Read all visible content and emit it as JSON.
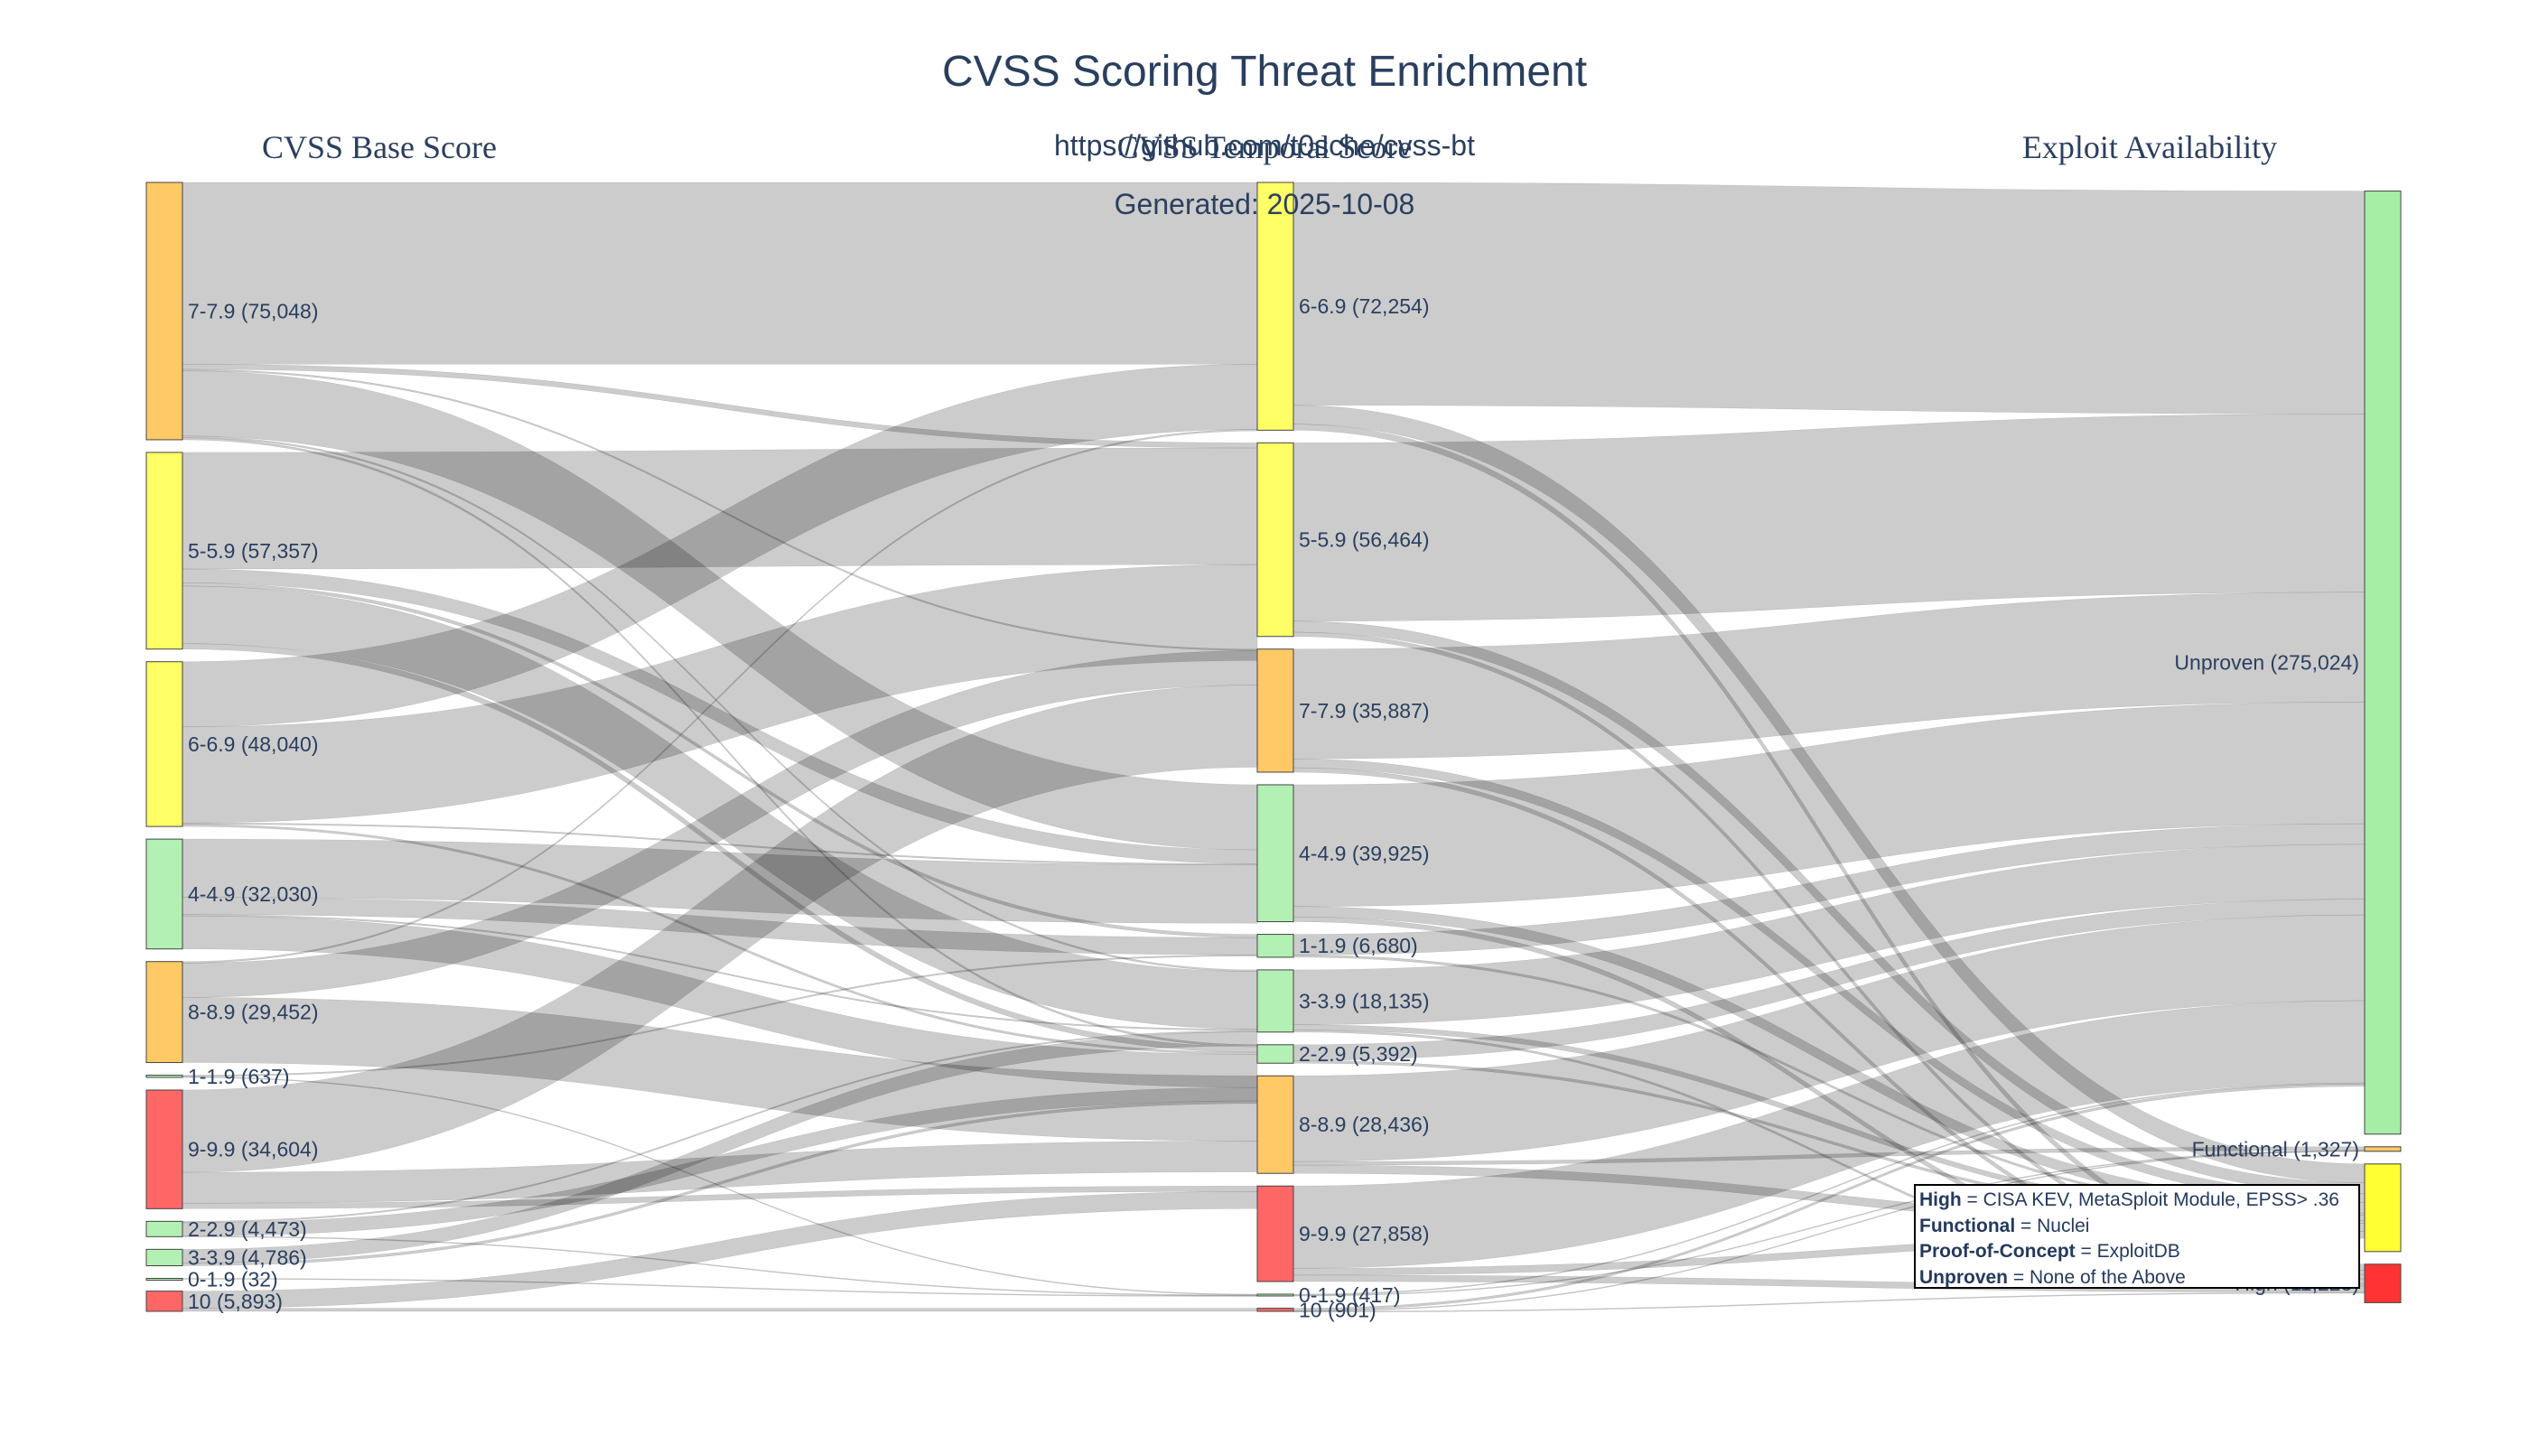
{
  "chart_data": {
    "type": "sankey",
    "title": "CVSS Scoring Threat Enrichment",
    "subtitle_url": "https://github.com/t0sche/cvss-bt",
    "subtitle_generated": "Generated: 2025-10-08",
    "column_headers": [
      "CVSS Base Score",
      "CVSS Temporal Score",
      "Exploit Availability"
    ],
    "columns": [
      {
        "name": "base",
        "nodes": [
          {
            "id": "b7",
            "label": "7-7.9",
            "value": 75048,
            "color": "#ffc966"
          },
          {
            "id": "b5",
            "label": "5-5.9",
            "value": 57357,
            "color": "#ffff66"
          },
          {
            "id": "b6",
            "label": "6-6.9",
            "value": 48040,
            "color": "#ffff66"
          },
          {
            "id": "b4",
            "label": "4-4.9",
            "value": 32030,
            "color": "#b3f0b3"
          },
          {
            "id": "b8",
            "label": "8-8.9",
            "value": 29452,
            "color": "#ffc966"
          },
          {
            "id": "b1",
            "label": "1-1.9",
            "value": 637,
            "color": "#b3f0b3"
          },
          {
            "id": "b9",
            "label": "9-9.9",
            "value": 34604,
            "color": "#ff6666"
          },
          {
            "id": "b2",
            "label": "2-2.9",
            "value": 4473,
            "color": "#b3f0b3"
          },
          {
            "id": "b3",
            "label": "3-3.9",
            "value": 4786,
            "color": "#b3f0b3"
          },
          {
            "id": "b0",
            "label": "0-1.9",
            "value": 32,
            "color": "#b3f0b3"
          },
          {
            "id": "b10",
            "label": "10",
            "value": 5893,
            "color": "#ff6666"
          }
        ]
      },
      {
        "name": "temporal",
        "nodes": [
          {
            "id": "t6",
            "label": "6-6.9",
            "value": 72254,
            "color": "#ffff66"
          },
          {
            "id": "t5",
            "label": "5-5.9",
            "value": 56464,
            "color": "#ffff66"
          },
          {
            "id": "t7",
            "label": "7-7.9",
            "value": 35887,
            "color": "#ffc966"
          },
          {
            "id": "t4",
            "label": "4-4.9",
            "value": 39925,
            "color": "#b3f0b3"
          },
          {
            "id": "t1",
            "label": "1-1.9",
            "value": 6680,
            "color": "#b3f0b3"
          },
          {
            "id": "t3",
            "label": "3-3.9",
            "value": 18135,
            "color": "#b3f0b3"
          },
          {
            "id": "t2",
            "label": "2-2.9",
            "value": 5392,
            "color": "#b3f0b3"
          },
          {
            "id": "t8",
            "label": "8-8.9",
            "value": 28436,
            "color": "#ffc966"
          },
          {
            "id": "t9",
            "label": "9-9.9",
            "value": 27858,
            "color": "#ff6666"
          },
          {
            "id": "t0",
            "label": "0-1.9",
            "value": 417,
            "color": "#b3f0b3"
          },
          {
            "id": "t10",
            "label": "10",
            "value": 901,
            "color": "#ff6666"
          }
        ]
      },
      {
        "name": "exploit",
        "nodes": [
          {
            "id": "eU",
            "label": "Unproven",
            "value": 275024,
            "color": "#a6eea6"
          },
          {
            "id": "eF",
            "label": "Functional",
            "value": 1327,
            "color": "#ffc966"
          },
          {
            "id": "eP",
            "label": "Proof-of-Concept",
            "value": 25541,
            "color": "#ffff33"
          },
          {
            "id": "eH",
            "label": "High",
            "value": 11228,
            "color": "#ff3333"
          }
        ]
      }
    ],
    "links": [
      {
        "source": "b7",
        "target": "t6",
        "value": 53000
      },
      {
        "source": "b7",
        "target": "t5",
        "value": 1500
      },
      {
        "source": "b7",
        "target": "t4",
        "value": 19000
      },
      {
        "source": "b7",
        "target": "t3",
        "value": 500
      },
      {
        "source": "b7",
        "target": "t2",
        "value": 600
      },
      {
        "source": "b7",
        "target": "t7",
        "value": 448
      },
      {
        "source": "b5",
        "target": "t5",
        "value": 34000
      },
      {
        "source": "b5",
        "target": "t4",
        "value": 4000
      },
      {
        "source": "b5",
        "target": "t3",
        "value": 16800
      },
      {
        "source": "b5",
        "target": "t2",
        "value": 1600
      },
      {
        "source": "b5",
        "target": "t1",
        "value": 957
      },
      {
        "source": "b6",
        "target": "t6",
        "value": 19000
      },
      {
        "source": "b6",
        "target": "t5",
        "value": 28000
      },
      {
        "source": "b6",
        "target": "t4",
        "value": 400
      },
      {
        "source": "b6",
        "target": "t2",
        "value": 640
      },
      {
        "source": "b4",
        "target": "t4",
        "value": 17000
      },
      {
        "source": "b4",
        "target": "t1",
        "value": 5000
      },
      {
        "source": "b4",
        "target": "t3",
        "value": 400
      },
      {
        "source": "b4",
        "target": "t2",
        "value": 9630
      },
      {
        "source": "b8",
        "target": "t7",
        "value": 10000
      },
      {
        "source": "b8",
        "target": "t8",
        "value": 19000
      },
      {
        "source": "b8",
        "target": "t6",
        "value": 452
      },
      {
        "source": "b1",
        "target": "t1",
        "value": 400
      },
      {
        "source": "b1",
        "target": "t0",
        "value": 237
      },
      {
        "source": "b9",
        "target": "t7",
        "value": 24000
      },
      {
        "source": "b9",
        "target": "t8",
        "value": 9000
      },
      {
        "source": "b9",
        "target": "t9",
        "value": 1604
      },
      {
        "source": "b2",
        "target": "t3",
        "value": 400
      },
      {
        "source": "b2",
        "target": "t2",
        "value": 3900
      },
      {
        "source": "b2",
        "target": "t0",
        "value": 173
      },
      {
        "source": "b3",
        "target": "t3",
        "value": 4000
      },
      {
        "source": "b3",
        "target": "t2",
        "value": 786
      },
      {
        "source": "b0",
        "target": "t0",
        "value": 32
      },
      {
        "source": "b10",
        "target": "t9",
        "value": 5000
      },
      {
        "source": "b10",
        "target": "t10",
        "value": 893
      },
      {
        "source": "t6",
        "target": "eU",
        "value": 65000
      },
      {
        "source": "t6",
        "target": "eP",
        "value": 5500
      },
      {
        "source": "t6",
        "target": "eH",
        "value": 1754
      },
      {
        "source": "t5",
        "target": "eU",
        "value": 52000
      },
      {
        "source": "t5",
        "target": "eP",
        "value": 3200
      },
      {
        "source": "t5",
        "target": "eH",
        "value": 1264
      },
      {
        "source": "t7",
        "target": "eU",
        "value": 32000
      },
      {
        "source": "t7",
        "target": "eP",
        "value": 2600
      },
      {
        "source": "t7",
        "target": "eH",
        "value": 1287
      },
      {
        "source": "t4",
        "target": "eU",
        "value": 35500
      },
      {
        "source": "t4",
        "target": "eP",
        "value": 3000
      },
      {
        "source": "t4",
        "target": "eH",
        "value": 1425
      },
      {
        "source": "t1",
        "target": "eU",
        "value": 6000
      },
      {
        "source": "t1",
        "target": "eP",
        "value": 680
      },
      {
        "source": "t3",
        "target": "eU",
        "value": 16000
      },
      {
        "source": "t3",
        "target": "eP",
        "value": 1500
      },
      {
        "source": "t3",
        "target": "eH",
        "value": 635
      },
      {
        "source": "t2",
        "target": "eU",
        "value": 4600
      },
      {
        "source": "t2",
        "target": "eP",
        "value": 792
      },
      {
        "source": "t8",
        "target": "eU",
        "value": 25000
      },
      {
        "source": "t8",
        "target": "eP",
        "value": 2400
      },
      {
        "source": "t8",
        "target": "eF",
        "value": 1036
      },
      {
        "source": "t9",
        "target": "eU",
        "value": 24000
      },
      {
        "source": "t9",
        "target": "eP",
        "value": 2000
      },
      {
        "source": "t9",
        "target": "eH",
        "value": 1858
      },
      {
        "source": "t0",
        "target": "eU",
        "value": 300
      },
      {
        "source": "t0",
        "target": "eF",
        "value": 117
      },
      {
        "source": "t10",
        "target": "eU",
        "value": 700
      },
      {
        "source": "t10",
        "target": "eF",
        "value": 174
      },
      {
        "source": "t10",
        "target": "eH",
        "value": 27
      }
    ],
    "legend": [
      {
        "term": "High",
        "definition": " = CISA KEV, MetaSploit Module, EPSS> .36"
      },
      {
        "term": "Functional",
        "definition": " = Nuclei"
      },
      {
        "term": "Proof-of-Concept",
        "definition": " = ExploitDB"
      },
      {
        "term": "Unproven",
        "definition": " = None of the Above"
      }
    ]
  }
}
